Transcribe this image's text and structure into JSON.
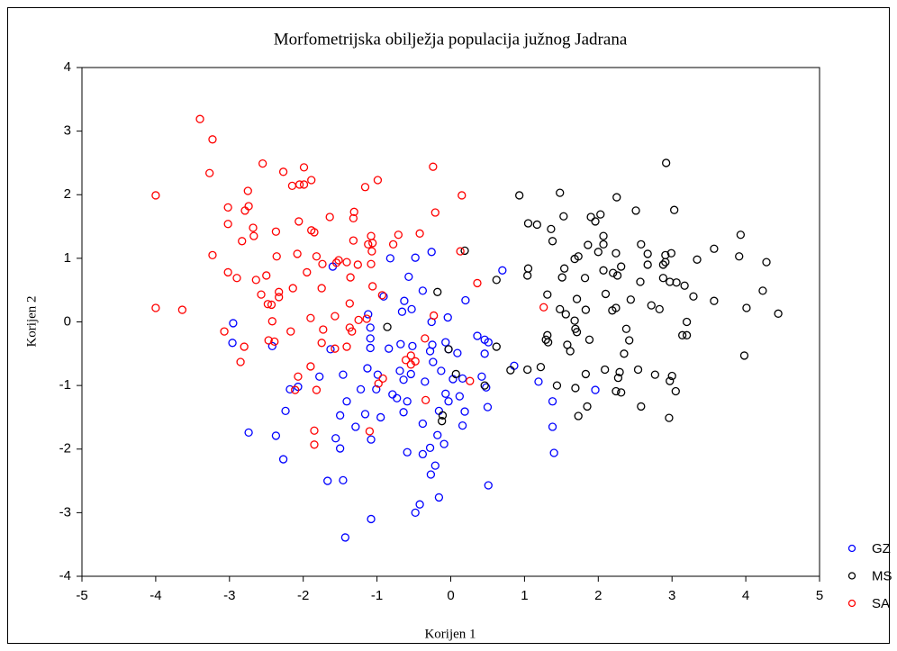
{
  "chart_data": {
    "type": "scatter",
    "title": "Morfometrijska obilježja populacija južnog Jadrana",
    "x_label": "Korijen 1",
    "y_label": "Korijen 2",
    "xlim": [
      -5,
      5
    ],
    "ylim": [
      -4,
      4
    ],
    "xticks": [
      -5,
      -4,
      -3,
      -2,
      -1,
      0,
      1,
      2,
      3,
      4,
      5
    ],
    "yticks": [
      -4,
      -3,
      -2,
      -1,
      0,
      1,
      2,
      3,
      4
    ],
    "series": [
      {
        "name": "GZ",
        "color": "#0000ff",
        "x": [
          -0.26,
          -0.48,
          -0.82,
          -1.6,
          0.7,
          -0.57,
          -0.38,
          -0.91,
          -0.63,
          0.2,
          -0.53,
          -0.66,
          -1.12,
          -1.09,
          -0.26,
          -0.04,
          -2.95,
          -2.96,
          -2.42,
          -1.63,
          -1.09,
          -0.68,
          -0.52,
          -0.25,
          -0.07,
          -0.03,
          -0.28,
          -0.84,
          -1.09,
          0.36,
          0.46,
          0.51,
          0.09,
          0.46,
          0.86,
          1.19,
          -0.24,
          -0.13,
          -0.69,
          -0.99,
          -1.46,
          -1.13,
          -0.54,
          -0.64,
          -0.35,
          0.03,
          0.16,
          0.42,
          0.48,
          -1.78,
          -2.07,
          -2.18,
          -1.22,
          -1.01,
          -0.79,
          -0.73,
          -0.59,
          -0.07,
          0.12,
          -0.03,
          -0.16,
          0.19,
          0.5,
          -0.95,
          -1.16,
          -0.64,
          -1.41,
          -1.5,
          -2.24,
          1.38,
          1.96,
          0.16,
          -0.38,
          -1.29,
          -1.08,
          -2.37,
          -2.74,
          -1.56,
          -1.5,
          -0.18,
          -0.09,
          -0.59,
          -0.28,
          1.4,
          -0.38,
          1.38,
          -2.27,
          -0.21,
          -0.27,
          -1.67,
          -1.46,
          0.51,
          -0.16,
          -0.42,
          -0.48,
          -1.08,
          -1.43
        ],
        "y": [
          1.1,
          1.01,
          1.0,
          0.87,
          0.81,
          0.71,
          0.49,
          0.4,
          0.33,
          0.34,
          0.2,
          0.16,
          0.12,
          -0.09,
          0.0,
          0.07,
          -0.02,
          -0.33,
          -0.38,
          -0.43,
          -0.26,
          -0.35,
          -0.38,
          -0.36,
          -0.32,
          -0.43,
          -0.46,
          -0.42,
          -0.41,
          -0.22,
          -0.28,
          -0.32,
          -0.49,
          -0.5,
          -0.69,
          -0.94,
          -0.63,
          -0.77,
          -0.77,
          -0.83,
          -0.83,
          -0.73,
          -0.82,
          -0.91,
          -0.94,
          -0.9,
          -0.89,
          -0.86,
          -1.03,
          -0.86,
          -1.02,
          -1.06,
          -1.06,
          -1.06,
          -1.14,
          -1.2,
          -1.25,
          -1.13,
          -1.17,
          -1.25,
          -1.4,
          -1.41,
          -1.34,
          -1.5,
          -1.45,
          -1.42,
          -1.25,
          -1.47,
          -1.4,
          -1.25,
          -1.07,
          -1.63,
          -1.6,
          -1.65,
          -1.85,
          -1.79,
          -1.74,
          -1.83,
          -1.99,
          -1.78,
          -1.92,
          -2.05,
          -1.98,
          -2.06,
          -2.08,
          -1.65,
          -2.16,
          -2.26,
          -2.4,
          -2.5,
          -2.49,
          -2.57,
          -2.76,
          -2.87,
          -3.0,
          -3.1,
          -3.39
        ]
      },
      {
        "name": "MS",
        "color": "#000000",
        "x": [
          2.92,
          0.93,
          1.48,
          2.25,
          3.03,
          2.51,
          1.53,
          1.9,
          1.96,
          2.03,
          1.05,
          1.17,
          1.36,
          2.07,
          2.58,
          2.07,
          2.24,
          2.99,
          2.91,
          2.67,
          2.0,
          1.38,
          0.19,
          1.86,
          2.67,
          2.88,
          2.91,
          3.34,
          3.57,
          3.93,
          3.91,
          4.28,
          1.68,
          1.54,
          1.73,
          1.05,
          1.04,
          1.51,
          1.82,
          2.07,
          2.2,
          2.31,
          2.26,
          2.57,
          3.06,
          3.17,
          2.88,
          2.97,
          0.62,
          4.23,
          1.31,
          1.71,
          2.1,
          2.44,
          2.19,
          2.24,
          3.29,
          3.57,
          2.72,
          2.83,
          4.01,
          4.44,
          1.48,
          1.56,
          1.83,
          3.2,
          1.68,
          1.69,
          1.31,
          1.32,
          1.71,
          3.14,
          3.2,
          2.38,
          1.88,
          1.29,
          0.62,
          1.58,
          1.62,
          2.42,
          2.35,
          3.98,
          -0.18,
          -0.86,
          -0.03,
          0.81,
          1.04,
          1.22,
          1.83,
          2.09,
          2.29,
          2.54,
          2.77,
          2.97,
          3.0,
          2.27,
          1.44,
          1.69,
          0.46,
          2.24,
          2.31,
          3.05,
          2.58,
          1.85,
          2.96,
          1.73,
          -0.12,
          -0.11,
          0.07
        ],
        "y": [
          2.5,
          1.99,
          2.03,
          1.96,
          1.76,
          1.75,
          1.66,
          1.65,
          1.58,
          1.69,
          1.55,
          1.53,
          1.46,
          1.35,
          1.22,
          1.22,
          1.08,
          1.08,
          1.05,
          1.07,
          1.1,
          1.27,
          1.12,
          1.21,
          0.9,
          0.9,
          0.94,
          0.98,
          1.15,
          1.37,
          1.03,
          0.94,
          0.99,
          0.84,
          1.03,
          0.84,
          0.73,
          0.7,
          0.69,
          0.81,
          0.77,
          0.87,
          0.73,
          0.63,
          0.62,
          0.57,
          0.69,
          0.63,
          0.66,
          0.49,
          0.43,
          0.36,
          0.44,
          0.35,
          0.18,
          0.22,
          0.4,
          0.33,
          0.26,
          0.2,
          0.22,
          0.13,
          0.2,
          0.12,
          0.19,
          0.0,
          0.02,
          -0.11,
          -0.21,
          -0.32,
          -0.16,
          -0.21,
          -0.21,
          -0.11,
          -0.28,
          -0.28,
          -0.39,
          -0.36,
          -0.46,
          -0.29,
          -0.5,
          -0.53,
          0.47,
          -0.08,
          -0.43,
          -0.76,
          -0.75,
          -0.71,
          -0.82,
          -0.75,
          -0.79,
          -0.75,
          -0.83,
          -0.93,
          -0.85,
          -0.88,
          -1.0,
          -1.04,
          -1.0,
          -1.09,
          -1.11,
          -1.09,
          -1.33,
          -1.33,
          -1.51,
          -1.48,
          -1.56,
          -1.47,
          -0.82
        ]
      },
      {
        "name": "SA",
        "color": "#ff0000",
        "x": [
          -3.4,
          -3.23,
          -3.27,
          -4.0,
          -2.55,
          -2.75,
          -2.27,
          -1.99,
          -2.15,
          -1.99,
          -1.89,
          -2.05,
          -0.99,
          -1.16,
          -0.24,
          0.15,
          -3.02,
          -2.74,
          -2.79,
          -1.89,
          -2.06,
          -1.64,
          -1.31,
          -1.32,
          -0.21,
          -3.02,
          -2.68,
          -2.67,
          -2.83,
          -2.37,
          -1.85,
          -1.32,
          -1.08,
          -1.06,
          -1.12,
          -0.71,
          -0.42,
          -0.78,
          -3.23,
          -2.36,
          -2.08,
          -1.82,
          -1.52,
          -1.41,
          -1.74,
          -1.55,
          -1.26,
          -1.08,
          -1.07,
          0.13,
          -3.02,
          -2.9,
          -2.5,
          -1.95,
          -2.64,
          0.36,
          -2.57,
          -2.33,
          -2.33,
          -2.48,
          -2.43,
          -2.14,
          -1.75,
          -1.36,
          -1.06,
          -0.93,
          -1.37,
          -4.0,
          -3.64,
          -2.42,
          -1.9,
          -1.57,
          -1.25,
          -1.14,
          -0.23,
          -0.35,
          -3.07,
          -2.17,
          -1.73,
          -1.37,
          -1.34,
          -2.47,
          -2.39,
          -1.75,
          -1.41,
          -1.57,
          -2.8,
          -2.85,
          -0.54,
          -0.48,
          -0.61,
          -0.54,
          -1.9,
          -2.07,
          -0.92,
          -0.98,
          -2.11,
          -1.82,
          -0.34,
          0.26,
          -1.85,
          -1.1,
          -1.85,
          1.26
        ],
        "y": [
          3.19,
          2.87,
          2.34,
          1.99,
          2.49,
          2.06,
          2.36,
          2.43,
          2.14,
          2.16,
          2.23,
          2.16,
          2.23,
          2.12,
          2.44,
          1.99,
          1.8,
          1.82,
          1.75,
          1.44,
          1.58,
          1.65,
          1.73,
          1.63,
          1.72,
          1.54,
          1.48,
          1.35,
          1.27,
          1.42,
          1.41,
          1.28,
          1.35,
          1.24,
          1.22,
          1.37,
          1.39,
          1.22,
          1.05,
          1.03,
          1.07,
          1.03,
          0.97,
          0.94,
          0.91,
          0.93,
          0.9,
          0.91,
          1.11,
          1.11,
          0.78,
          0.69,
          0.73,
          0.78,
          0.66,
          0.61,
          0.43,
          0.47,
          0.39,
          0.28,
          0.27,
          0.53,
          0.53,
          0.7,
          0.56,
          0.42,
          0.29,
          0.22,
          0.19,
          0.01,
          0.06,
          0.09,
          0.03,
          0.05,
          0.1,
          -0.26,
          -0.15,
          -0.15,
          -0.12,
          -0.09,
          -0.15,
          -0.29,
          -0.31,
          -0.33,
          -0.39,
          -0.42,
          -0.39,
          -0.63,
          -0.53,
          -0.62,
          -0.6,
          -0.67,
          -0.7,
          -0.86,
          -0.89,
          -0.97,
          -1.07,
          -1.07,
          -1.23,
          -0.93,
          -1.71,
          -1.72,
          -1.93,
          0.23
        ]
      }
    ]
  }
}
